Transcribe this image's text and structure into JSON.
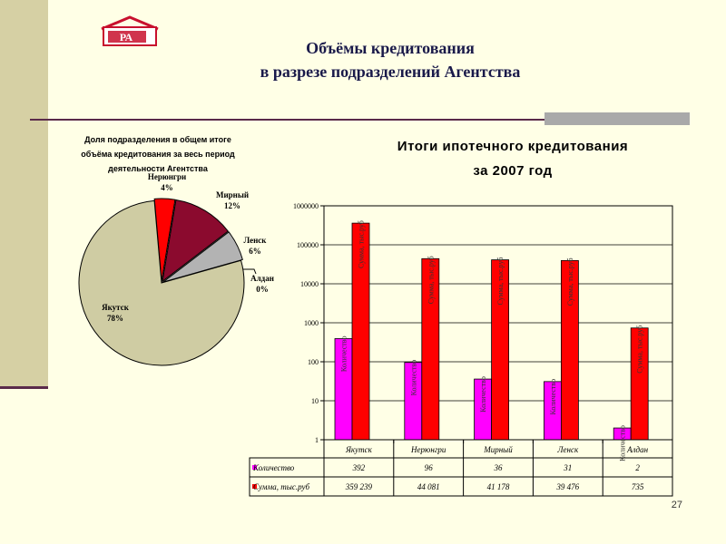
{
  "slide": {
    "title_line1": "Объёмы кредитования",
    "title_line2": "в разрезе подразделений Агентства",
    "page_number": "27",
    "logo_text": "РА"
  },
  "chart_data": [
    {
      "type": "pie",
      "title_lines": [
        "Доля подразделения в общем итоге",
        "объёма  кредитования за весь период",
        "деятельности Агентства"
      ],
      "slices": [
        {
          "name": "Нерюнгри",
          "value": 4,
          "label": "4%",
          "color": "#ff0000"
        },
        {
          "name": "Мирный",
          "value": 12,
          "label": "12%",
          "color": "#8b0a2e"
        },
        {
          "name": "Ленск",
          "value": 6,
          "label": "6%",
          "color": "#b3b3b3"
        },
        {
          "name": "Алдан",
          "value": 0,
          "label": "0%",
          "color": "#ffffff"
        },
        {
          "name": "Якутск",
          "value": 78,
          "label": "78%",
          "color": "#cfcca3"
        }
      ]
    },
    {
      "type": "bar",
      "title_lines": [
        "Итоги ипотечного кредитования",
        "за 2007 год"
      ],
      "y_scale": "log",
      "ylim": [
        1,
        1000000
      ],
      "y_ticks": [
        "1",
        "10",
        "100",
        "1000",
        "10000",
        "100000",
        "1000000"
      ],
      "categories": [
        "Якутск",
        "Нерюнгри",
        "Мирный",
        "Ленск",
        "Алдан"
      ],
      "series": [
        {
          "name": "Количество",
          "color": "#ff00ff",
          "bar_label": "Количество",
          "values": [
            392,
            96,
            36,
            31,
            2
          ],
          "labels": [
            "392",
            "96",
            "36",
            "31",
            "2"
          ]
        },
        {
          "name": "Сумма, тыс.руб",
          "color": "#ff0000",
          "bar_label": "Сумма, тыс.руб",
          "values": [
            359239,
            44081,
            41178,
            39476,
            735
          ],
          "labels": [
            "359 239",
            "44 081",
            "41 178",
            "39 476",
            "735"
          ]
        }
      ]
    }
  ]
}
